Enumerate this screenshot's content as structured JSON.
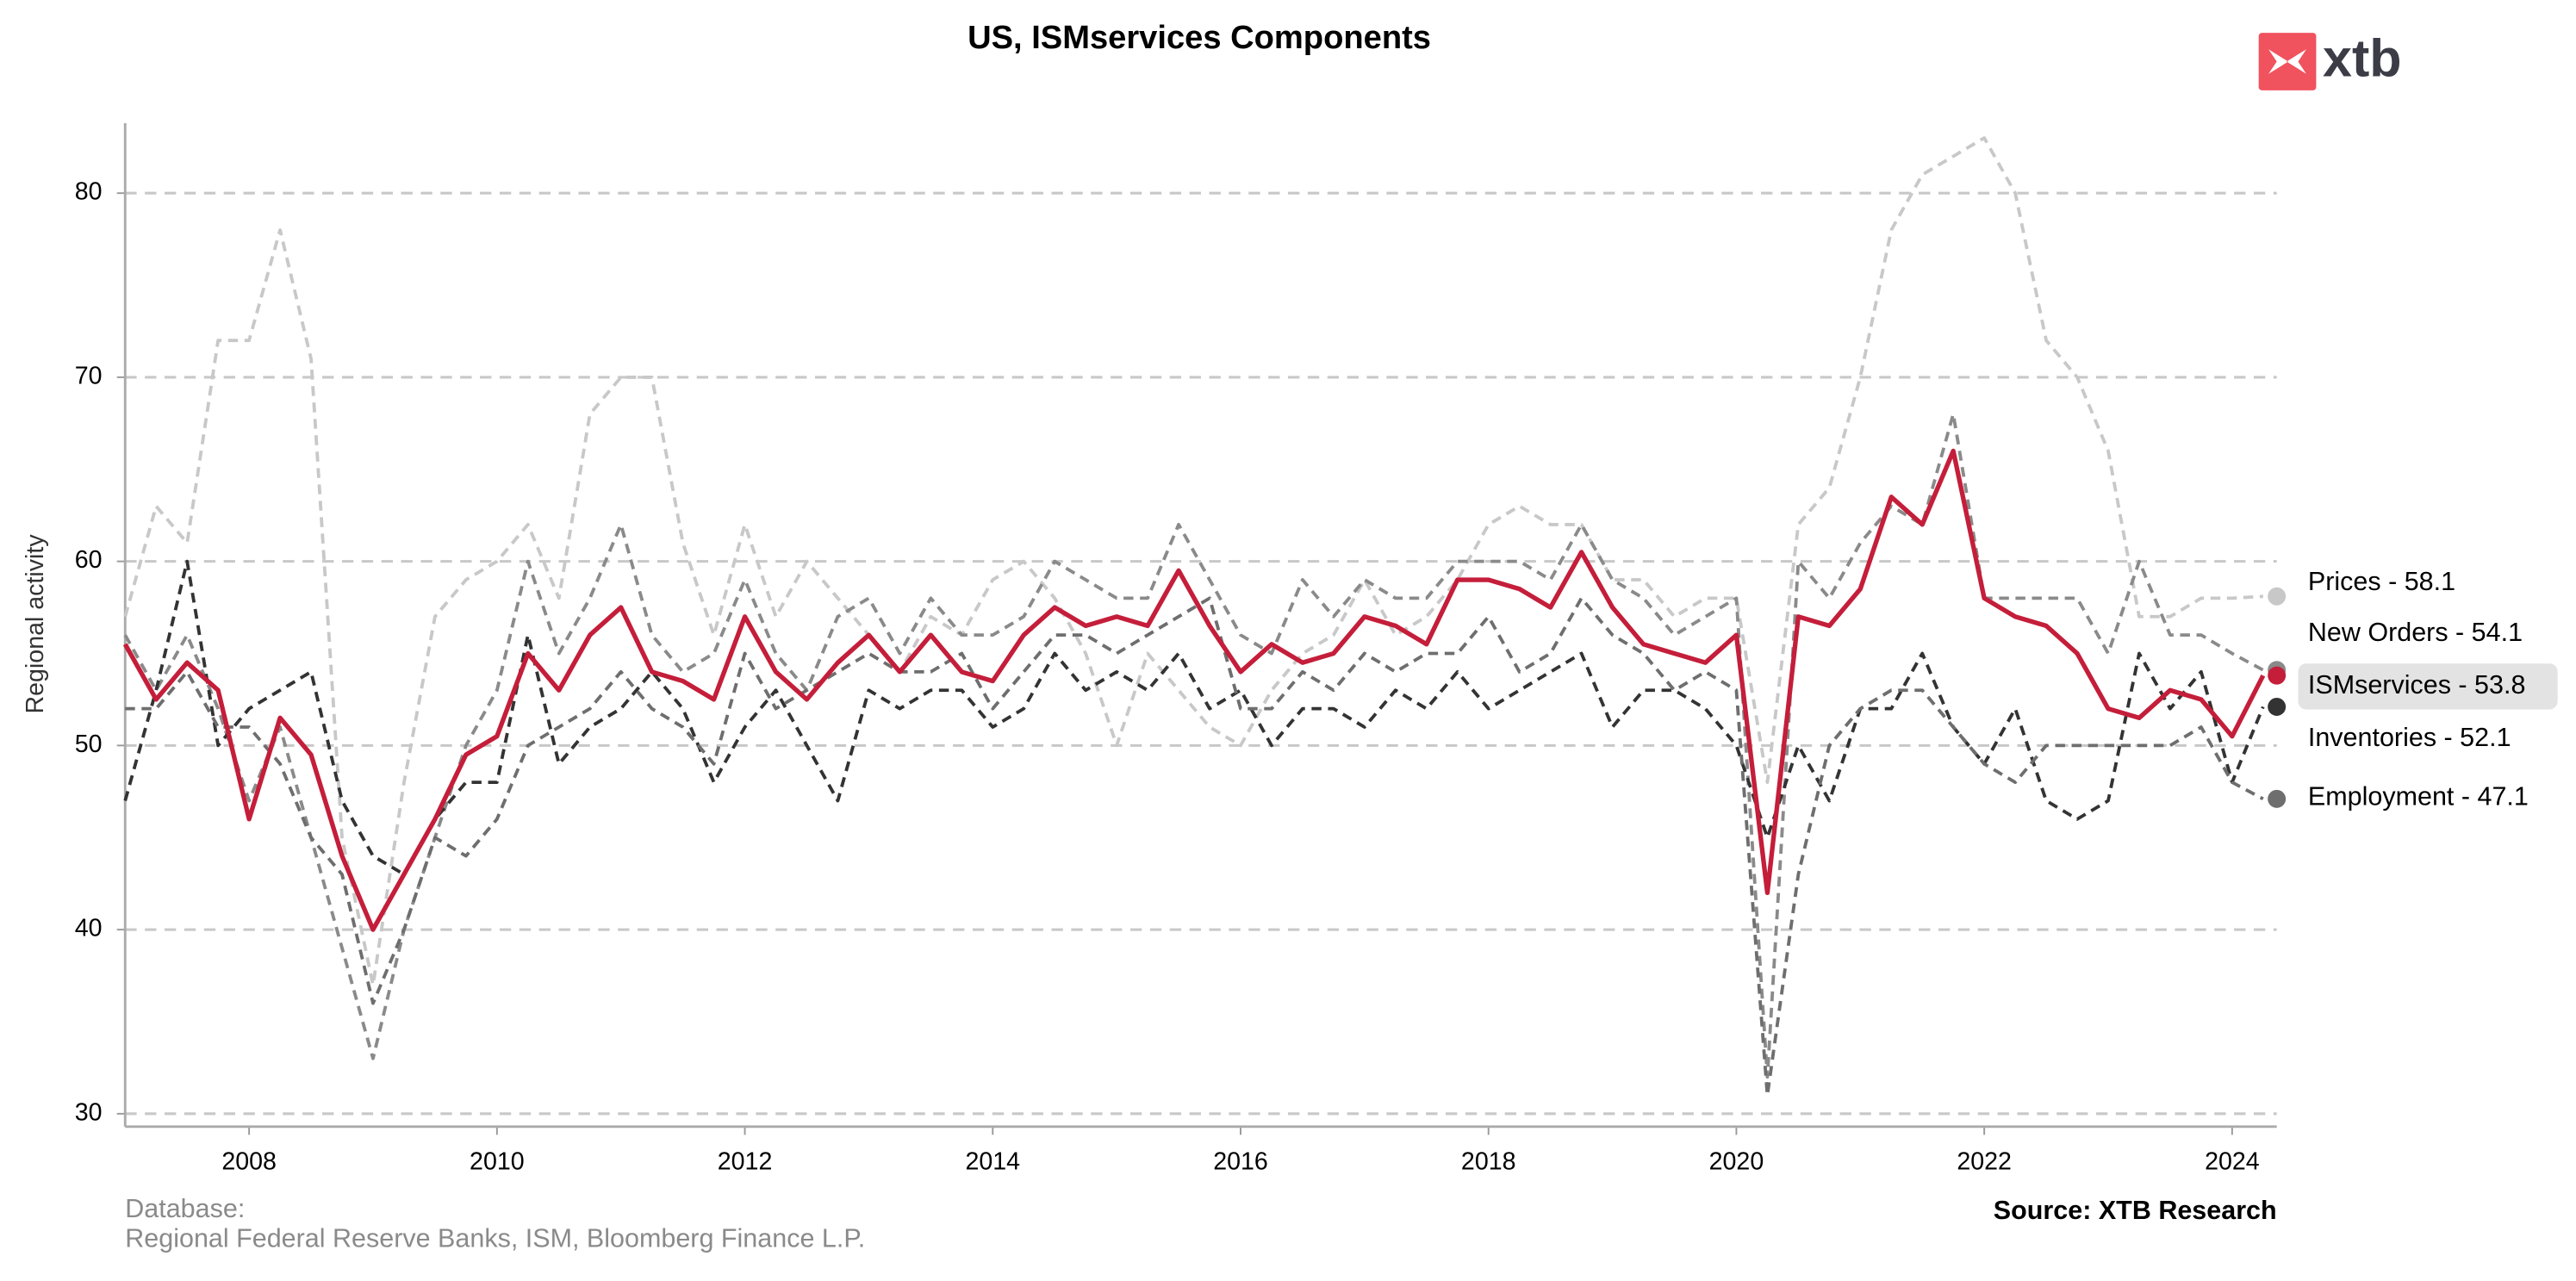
{
  "chart_data": {
    "type": "line",
    "title": "US, ISMservices Components",
    "y_label": "Regional activity",
    "logo": "xtb",
    "footnote": [
      "Database:",
      "Regional Federal Reserve Banks, ISM, Bloomberg Finance L.P."
    ],
    "source": "Source: XTB Research",
    "xlim": [
      2007.0,
      2024.36
    ],
    "ylim": [
      29.3,
      83.8
    ],
    "xticks": [
      2008,
      2010,
      2012,
      2014,
      2016,
      2018,
      2020,
      2022,
      2024
    ],
    "yticks": [
      30,
      40,
      50,
      60,
      70,
      80
    ],
    "grid": true,
    "x": [
      2007,
      2007.25,
      2007.5,
      2007.75,
      2008,
      2008.25,
      2008.5,
      2008.75,
      2009,
      2009.25,
      2009.5,
      2009.75,
      2010,
      2010.25,
      2010.5,
      2010.75,
      2011,
      2011.25,
      2011.5,
      2011.75,
      2012,
      2012.25,
      2012.5,
      2012.75,
      2013,
      2013.25,
      2013.5,
      2013.75,
      2014,
      2014.25,
      2014.5,
      2014.75,
      2015,
      2015.25,
      2015.5,
      2015.75,
      2016,
      2016.25,
      2016.5,
      2016.75,
      2017,
      2017.25,
      2017.5,
      2017.75,
      2018,
      2018.25,
      2018.5,
      2018.75,
      2019,
      2019.25,
      2019.5,
      2019.75,
      2020,
      2020.25,
      2020.5,
      2020.75,
      2021,
      2021.25,
      2021.5,
      2021.75,
      2022,
      2022.25,
      2022.5,
      2022.75,
      2023,
      2023.25,
      2023.5,
      2023.75,
      2024,
      2024.25
    ],
    "series": [
      {
        "name": "Prices - 58.1",
        "color": "#c8c8c8",
        "style": "dashed",
        "values": [
          57,
          63,
          61,
          72,
          72,
          78,
          71,
          45,
          37,
          48,
          57,
          59,
          60,
          62,
          58,
          68,
          70,
          70,
          61,
          56,
          62,
          57,
          60,
          58,
          56,
          54,
          57,
          56,
          59,
          60,
          58,
          55,
          50,
          55,
          53,
          51,
          50,
          53,
          55,
          56,
          59,
          56,
          57,
          59,
          62,
          63,
          62,
          62,
          59,
          59,
          57,
          58,
          58,
          48,
          62,
          64,
          70,
          78,
          81,
          82,
          83,
          80,
          72,
          70,
          66,
          57,
          57,
          58,
          58,
          58.1
        ]
      },
      {
        "name": "New Orders - 54.1",
        "color": "#8a8a8a",
        "style": "dashed",
        "values": [
          56,
          53,
          56,
          52,
          47,
          51,
          45,
          39,
          33,
          40,
          45,
          50,
          53,
          60,
          55,
          58,
          62,
          56,
          54,
          55,
          59,
          55,
          53,
          57,
          58,
          55,
          58,
          56,
          56,
          57,
          60,
          59,
          58,
          58,
          62,
          59,
          56,
          55,
          59,
          57,
          59,
          58,
          58,
          60,
          60,
          60,
          59,
          62,
          59,
          58,
          56,
          57,
          58,
          32,
          60,
          58,
          61,
          63,
          62,
          68,
          58,
          58,
          58,
          58,
          55,
          60,
          56,
          56,
          55,
          54.1
        ]
      },
      {
        "name": "ISMservices - 53.8",
        "color": "#c41e3a",
        "style": "solid",
        "highlight": true,
        "values": [
          55.5,
          52.5,
          54.5,
          53,
          46,
          51.5,
          49.5,
          44,
          40,
          43,
          46,
          49.5,
          50.5,
          55,
          53,
          56,
          57.5,
          54,
          53.5,
          52.5,
          57,
          54,
          52.5,
          54.5,
          56,
          54,
          56,
          54,
          53.5,
          56,
          57.5,
          56.5,
          57,
          56.5,
          59.5,
          56.5,
          54,
          55.5,
          54.5,
          55,
          57,
          56.5,
          55.5,
          59,
          59,
          58.5,
          57.5,
          60.5,
          57.5,
          55.5,
          55,
          54.5,
          56,
          42,
          57,
          56.5,
          58.5,
          63.5,
          62,
          66,
          58,
          57,
          56.5,
          55,
          52,
          51.5,
          53,
          52.5,
          50.5,
          53.8
        ]
      },
      {
        "name": "Inventories - 52.1",
        "color": "#333333",
        "style": "dashed",
        "values": [
          47,
          53,
          60,
          50,
          52,
          53,
          54,
          47,
          44,
          43,
          46,
          48,
          48,
          56,
          49,
          51,
          52,
          54,
          52,
          48,
          51,
          53,
          50,
          47,
          53,
          52,
          53,
          53,
          51,
          52,
          55,
          53,
          54,
          53,
          55,
          52,
          53,
          50,
          52,
          52,
          51,
          53,
          52,
          54,
          52,
          53,
          54,
          55,
          51,
          53,
          53,
          52,
          50,
          45,
          50,
          47,
          52,
          52,
          55,
          51,
          49,
          52,
          47,
          46,
          47,
          55,
          52,
          54,
          48,
          52.1
        ]
      },
      {
        "name": "Employment - 47.1",
        "color": "#6e6e6e",
        "style": "dashed",
        "values": [
          52,
          52,
          54,
          51,
          51,
          49,
          45,
          43,
          36,
          40,
          45,
          44,
          46,
          50,
          51,
          52,
          54,
          52,
          51,
          49,
          55,
          52,
          53,
          54,
          55,
          54,
          54,
          55,
          52,
          54,
          56,
          56,
          55,
          56,
          57,
          58,
          52,
          52,
          54,
          53,
          55,
          54,
          55,
          55,
          57,
          54,
          55,
          58,
          56,
          55,
          53,
          54,
          53,
          31,
          43,
          50,
          52,
          53,
          53,
          51,
          49,
          48,
          50,
          50,
          50,
          50,
          50,
          51,
          48,
          47.1
        ]
      }
    ]
  }
}
